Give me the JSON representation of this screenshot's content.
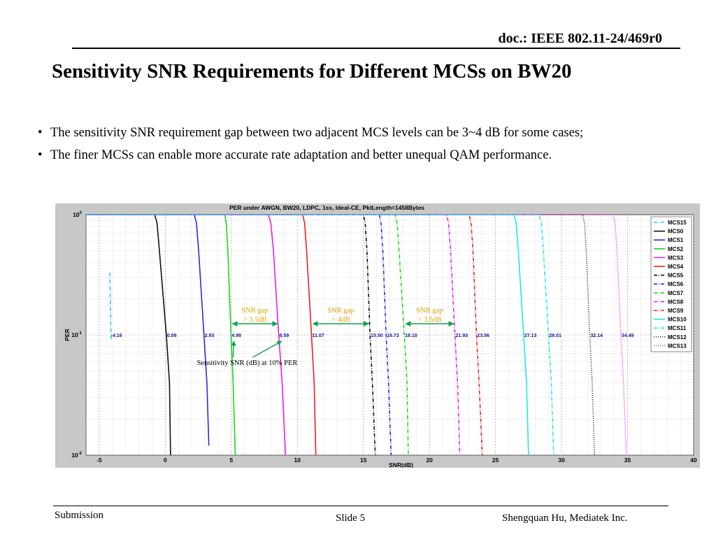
{
  "header": {
    "doc_id": "doc.: IEEE 802.11-24/469r0",
    "title": "Sensitivity SNR Requirements for Different MCSs on BW20"
  },
  "bullets": [
    "The sensitivity SNR requirement gap between two adjacent MCS levels can be 3~4 dB for some cases;",
    "The finer MCSs can enable more accurate rate adaptation and better unequal QAM performance."
  ],
  "chart_data": {
    "type": "line",
    "title": "PER under AWGN, BW20, LDPC, 1ss, Ideal-CE, PktLength=1458Bytes",
    "xlabel": "SNR(dB)",
    "ylabel": "PER",
    "xlim": [
      -6,
      40
    ],
    "ylim": [
      0.01,
      1
    ],
    "yscale": "log",
    "xticks": [
      "-5",
      "0",
      "5",
      "10",
      "15",
      "20",
      "25",
      "30",
      "35",
      "40"
    ],
    "yticks": [
      "10^0",
      "10^-1",
      "10^-2"
    ],
    "grid": true,
    "legend_position": "right",
    "series": [
      {
        "name": "MCS15",
        "color": "#1ec8e0",
        "dash": "dashdot",
        "sens": -4.16,
        "x_top": -4.2,
        "y_top": 0.33,
        "x_end": -4.1,
        "y_end": 0.09
      },
      {
        "name": "MCS0",
        "color": "#111111",
        "dash": "solid",
        "sens": 0.08,
        "x_top": -0.8,
        "y_top": 1,
        "x_end": 0.4,
        "y_end": 0.01
      },
      {
        "name": "MCS1",
        "color": "#2a2ad8",
        "dash": "solid",
        "sens": 2.93,
        "x_top": 2.2,
        "y_top": 1,
        "x_end": 3.3,
        "y_end": 0.012
      },
      {
        "name": "MCS2",
        "color": "#18d818",
        "dash": "solid",
        "sens": 4.98,
        "x_top": 4.5,
        "y_top": 1,
        "x_end": 5.3,
        "y_end": 0.01
      },
      {
        "name": "MCS3",
        "color": "#e81ee8",
        "dash": "solid",
        "sens": 8.59,
        "x_top": 7.8,
        "y_top": 1,
        "x_end": 9.1,
        "y_end": 0.01
      },
      {
        "name": "MCS4",
        "color": "#e82020",
        "dash": "solid",
        "sens": 11.07,
        "x_top": 10.4,
        "y_top": 1,
        "x_end": 11.4,
        "y_end": 0.01
      },
      {
        "name": "MCS5",
        "color": "#111111",
        "dash": "dashdot",
        "sens": 15.5,
        "x_top": 15.0,
        "y_top": 1,
        "x_end": 15.9,
        "y_end": 0.01
      },
      {
        "name": "MCS6",
        "color": "#2a2ad8",
        "dash": "dashdot",
        "sens": 16.72,
        "x_top": 16.2,
        "y_top": 1,
        "x_end": 17.1,
        "y_end": 0.01
      },
      {
        "name": "MCS7",
        "color": "#18d818",
        "dash": "dashdot",
        "sens": 18.1,
        "x_top": 17.4,
        "y_top": 1,
        "x_end": 18.4,
        "y_end": 0.01
      },
      {
        "name": "MCS8",
        "color": "#e81ee8",
        "dash": "dashdot",
        "sens": 21.93,
        "x_top": 21.3,
        "y_top": 1,
        "x_end": 22.3,
        "y_end": 0.01
      },
      {
        "name": "MCS9",
        "color": "#e82020",
        "dash": "dashdot",
        "sens": 23.56,
        "x_top": 23.0,
        "y_top": 1,
        "x_end": 24.0,
        "y_end": 0.01
      },
      {
        "name": "MCS10",
        "color": "#1ee8e8",
        "dash": "solid",
        "sens": 27.13,
        "x_top": 26.4,
        "y_top": 1,
        "x_end": 27.5,
        "y_end": 0.01
      },
      {
        "name": "MCS11",
        "color": "#1ee8e8",
        "dash": "dashdot",
        "sens": 29.01,
        "x_top": 28.3,
        "y_top": 1,
        "x_end": 29.4,
        "y_end": 0.01
      },
      {
        "name": "MCS12",
        "color": "#222222",
        "dash": "dotted",
        "sens": 32.14,
        "x_top": 31.6,
        "y_top": 1,
        "x_end": 32.5,
        "y_end": 0.01
      },
      {
        "name": "MCS13",
        "color": "#ee22ee",
        "dash": "dotted",
        "sens": 34.49,
        "x_top": 33.9,
        "y_top": 1,
        "x_end": 34.9,
        "y_end": 0.01
      }
    ],
    "point_labels": [
      "-4.16",
      "0.08",
      "2.93",
      "4.98",
      "8.59",
      "11.07",
      "15.50",
      "16.72",
      "18.10",
      "21.93",
      "23.56",
      "27.13",
      "29.01",
      "32.14",
      "34.49"
    ],
    "annotations": {
      "gaps": [
        {
          "line1": "SNR gap",
          "line2": "> 3.5dB",
          "x_from": 4.98,
          "x_to": 8.59
        },
        {
          "line1": "SNR gap",
          "line2": "> 4dB",
          "x_from": 11.07,
          "x_to": 15.5
        },
        {
          "line1": "SNR gap",
          "line2": "> 3.5dB",
          "x_from": 18.1,
          "x_to": 21.93
        }
      ],
      "note": "Sensitivity SNR (dB) at 10% PER",
      "text_color": "#e0a000",
      "arrow_color": "#10a050"
    }
  },
  "footer": {
    "left": "Submission",
    "center": "Slide 5",
    "right": "Shengquan Hu, Mediatek Inc."
  }
}
